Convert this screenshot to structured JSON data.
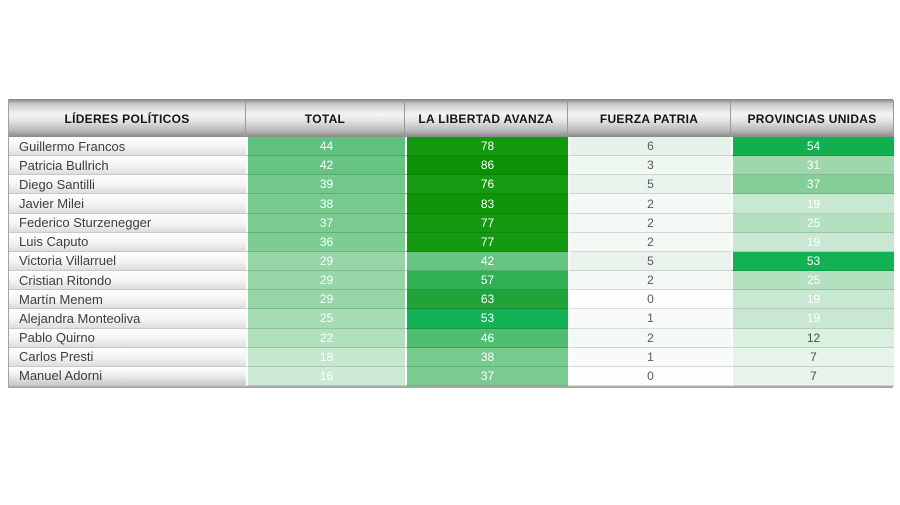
{
  "table": {
    "columns": [
      {
        "key": "leader",
        "label": "LÍDERES POLÍTICOS"
      },
      {
        "key": "total",
        "label": "TOTAL"
      },
      {
        "key": "lla",
        "label": "LA LIBERTAD AVANZA"
      },
      {
        "key": "fp",
        "label": "FUERZA PATRIA"
      },
      {
        "key": "pu",
        "label": "PROVINCIAS UNIDAS"
      }
    ],
    "rows": [
      {
        "leader": "Guillermo Francos",
        "cells": [
          {
            "v": "44",
            "bg": "#5ec17d",
            "fg": "#ffffff"
          },
          {
            "v": "78",
            "bg": "#13990e",
            "fg": "#ffffff"
          },
          {
            "v": "6",
            "bg": "#e7f2ea",
            "fg": "#595959"
          },
          {
            "v": "54",
            "bg": "#10b050",
            "fg": "#ffffff"
          }
        ]
      },
      {
        "leader": "Patricia Bullrich",
        "cells": [
          {
            "v": "42",
            "bg": "#66c483",
            "fg": "#ffffff"
          },
          {
            "v": "86",
            "bg": "#0a9104",
            "fg": "#ffffff"
          },
          {
            "v": "3",
            "bg": "#eff7f1",
            "fg": "#595959"
          },
          {
            "v": "31",
            "bg": "#9dd7ab",
            "fg": "#ffffff"
          }
        ]
      },
      {
        "leader": "Diego Santilli",
        "cells": [
          {
            "v": "39",
            "bg": "#73c98c",
            "fg": "#ffffff"
          },
          {
            "v": "76",
            "bg": "#169b12",
            "fg": "#ffffff"
          },
          {
            "v": "5",
            "bg": "#e9f3ec",
            "fg": "#595959"
          },
          {
            "v": "37",
            "bg": "#85ce97",
            "fg": "#ffffff"
          }
        ]
      },
      {
        "leader": "Javier Milei",
        "cells": [
          {
            "v": "38",
            "bg": "#76ca8e",
            "fg": "#ffffff"
          },
          {
            "v": "83",
            "bg": "#0d9507",
            "fg": "#ffffff"
          },
          {
            "v": "2",
            "bg": "#f3f9f5",
            "fg": "#595959"
          },
          {
            "v": "19",
            "bg": "#c9e8d1",
            "fg": "#ffffff"
          }
        ]
      },
      {
        "leader": "Federico Sturzenegger",
        "cells": [
          {
            "v": "37",
            "bg": "#79cb90",
            "fg": "#ffffff"
          },
          {
            "v": "77",
            "bg": "#149a10",
            "fg": "#ffffff"
          },
          {
            "v": "2",
            "bg": "#f3f9f5",
            "fg": "#595959"
          },
          {
            "v": "25",
            "bg": "#b5e0c0",
            "fg": "#ffffff"
          }
        ]
      },
      {
        "leader": "Luis Caputo",
        "cells": [
          {
            "v": "36",
            "bg": "#7ccc93",
            "fg": "#ffffff"
          },
          {
            "v": "77",
            "bg": "#149a10",
            "fg": "#ffffff"
          },
          {
            "v": "2",
            "bg": "#f3f9f5",
            "fg": "#595959"
          },
          {
            "v": "19",
            "bg": "#c9e8d1",
            "fg": "#ffffff"
          }
        ]
      },
      {
        "leader": "Victoria Villarruel",
        "cells": [
          {
            "v": "29",
            "bg": "#95d5a6",
            "fg": "#ffffff"
          },
          {
            "v": "42",
            "bg": "#66c483",
            "fg": "#ffffff"
          },
          {
            "v": "5",
            "bg": "#e9f3ec",
            "fg": "#595959"
          },
          {
            "v": "53",
            "bg": "#12b153",
            "fg": "#ffffff"
          }
        ]
      },
      {
        "leader": "Cristian Ritondo",
        "cells": [
          {
            "v": "29",
            "bg": "#95d5a6",
            "fg": "#ffffff"
          },
          {
            "v": "57",
            "bg": "#2fb054",
            "fg": "#ffffff"
          },
          {
            "v": "2",
            "bg": "#f3f9f5",
            "fg": "#595959"
          },
          {
            "v": "25",
            "bg": "#b5e0c0",
            "fg": "#ffffff"
          }
        ]
      },
      {
        "leader": "Martín Menem",
        "cells": [
          {
            "v": "29",
            "bg": "#95d5a6",
            "fg": "#ffffff"
          },
          {
            "v": "63",
            "bg": "#1ea438",
            "fg": "#ffffff"
          },
          {
            "v": "0",
            "bg": "#fdfefd",
            "fg": "#595959"
          },
          {
            "v": "19",
            "bg": "#c9e8d1",
            "fg": "#ffffff"
          }
        ]
      },
      {
        "leader": "Alejandra Monteoliva",
        "cells": [
          {
            "v": "25",
            "bg": "#a6dcb3",
            "fg": "#ffffff"
          },
          {
            "v": "53",
            "bg": "#12b153",
            "fg": "#ffffff"
          },
          {
            "v": "1",
            "bg": "#f8fbf9",
            "fg": "#595959"
          },
          {
            "v": "19",
            "bg": "#c9e8d1",
            "fg": "#ffffff"
          }
        ]
      },
      {
        "leader": "Pablo Quirno",
        "cells": [
          {
            "v": "22",
            "bg": "#b2e0bd",
            "fg": "#ffffff"
          },
          {
            "v": "46",
            "bg": "#4fbe70",
            "fg": "#ffffff"
          },
          {
            "v": "2",
            "bg": "#f3f9f5",
            "fg": "#595959"
          },
          {
            "v": "12",
            "bg": "#daf0e0",
            "fg": "#4f4f4f"
          }
        ]
      },
      {
        "leader": "Carlos Presti",
        "cells": [
          {
            "v": "18",
            "bg": "#c6e8cf",
            "fg": "#ffffff"
          },
          {
            "v": "38",
            "bg": "#76ca8e",
            "fg": "#ffffff"
          },
          {
            "v": "1",
            "bg": "#f8fbf9",
            "fg": "#595959"
          },
          {
            "v": "7",
            "bg": "#e6f4ea",
            "fg": "#4f4f4f"
          }
        ]
      },
      {
        "leader": "Manuel Adorni",
        "cells": [
          {
            "v": "16",
            "bg": "#ccead4",
            "fg": "#ffffff"
          },
          {
            "v": "37",
            "bg": "#79cb90",
            "fg": "#ffffff"
          },
          {
            "v": "0",
            "bg": "#fdfefd",
            "fg": "#595959"
          },
          {
            "v": "7",
            "bg": "#e6f4ea",
            "fg": "#4f4f4f"
          }
        ]
      }
    ]
  },
  "chart_data": {
    "type": "table",
    "title": "",
    "columns": [
      "LÍDERES POLÍTICOS",
      "TOTAL",
      "LA LIBERTAD AVANZA",
      "FUERZA PATRIA",
      "PROVINCIAS UNIDAS"
    ],
    "rows": [
      [
        "Guillermo Francos",
        44,
        78,
        6,
        54
      ],
      [
        "Patricia Bullrich",
        42,
        86,
        3,
        31
      ],
      [
        "Diego Santilli",
        39,
        76,
        5,
        37
      ],
      [
        "Javier Milei",
        38,
        83,
        2,
        19
      ],
      [
        "Federico Sturzenegger",
        37,
        77,
        2,
        25
      ],
      [
        "Luis Caputo",
        36,
        77,
        2,
        19
      ],
      [
        "Victoria Villarruel",
        29,
        42,
        5,
        53
      ],
      [
        "Cristian Ritondo",
        29,
        57,
        2,
        25
      ],
      [
        "Martín Menem",
        29,
        63,
        0,
        19
      ],
      [
        "Alejandra Monteoliva",
        25,
        53,
        1,
        19
      ],
      [
        "Pablo Quirno",
        22,
        46,
        2,
        12
      ],
      [
        "Carlos Presti",
        18,
        38,
        1,
        7
      ],
      [
        "Manuel Adorni",
        16,
        37,
        0,
        7
      ]
    ],
    "layout_hints": {
      "cell_shading": "green color scale, darker = higher value",
      "heat_colors": {
        "max": "#0a9104",
        "mid": "#10b050",
        "min": "#ffffff"
      }
    }
  }
}
